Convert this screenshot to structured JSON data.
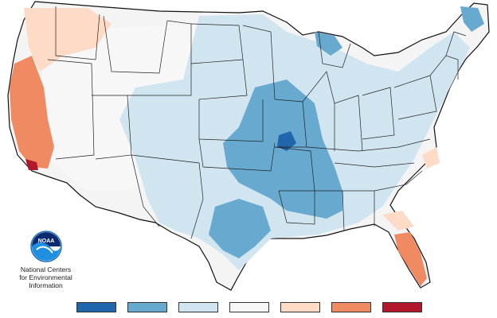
{
  "map": {
    "region": "contiguous-united-states",
    "state_borders": true,
    "categories_shown": [
      "much-below",
      "below",
      "slightly-below",
      "near-normal",
      "slightly-above",
      "above",
      "much-above"
    ]
  },
  "organization": {
    "logo_text": "NOAA",
    "name_line1": "National Centers",
    "name_line2": "for Environmental",
    "name_line3": "Information"
  },
  "legend": {
    "swatches": [
      {
        "color": "#2166ac"
      },
      {
        "color": "#67a9cf"
      },
      {
        "color": "#d1e5f0"
      },
      {
        "color": "#f7f7f7"
      },
      {
        "color": "#fddbc7"
      },
      {
        "color": "#ef8a62"
      },
      {
        "color": "#b2182b"
      }
    ]
  },
  "colors": {
    "background": "#ffffff",
    "border": "#111111",
    "noaa_blue": "#1f6fb5"
  }
}
